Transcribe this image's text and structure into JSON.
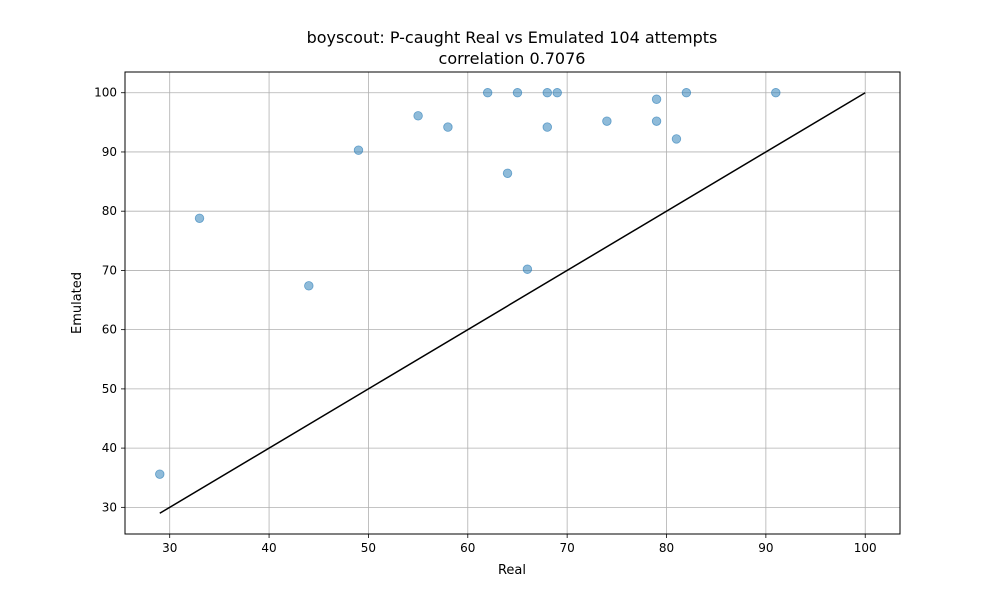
{
  "chart_data": {
    "type": "scatter",
    "title": "boyscout: P-caught Real vs Emulated 104 attempts",
    "subtitle": "correlation 0.7076",
    "xlabel": "Real",
    "ylabel": "Emulated",
    "xlim": [
      25.5,
      103.5
    ],
    "ylim": [
      25.5,
      103.5
    ],
    "xticks": [
      30,
      40,
      50,
      60,
      70,
      80,
      90,
      100
    ],
    "yticks": [
      30,
      40,
      50,
      60,
      70,
      80,
      90,
      100
    ],
    "grid": true,
    "colors": {
      "points": "#1f77b4",
      "reference_line": "#000000",
      "grid": "#b0b0b0"
    },
    "series": [
      {
        "values": [
          {
            "x": 29,
            "y": 35.6
          },
          {
            "x": 33,
            "y": 78.8
          },
          {
            "x": 44,
            "y": 67.4
          },
          {
            "x": 49,
            "y": 90.3
          },
          {
            "x": 55,
            "y": 96.1
          },
          {
            "x": 58,
            "y": 94.2
          },
          {
            "x": 62,
            "y": 100
          },
          {
            "x": 64,
            "y": 86.4
          },
          {
            "x": 65,
            "y": 100
          },
          {
            "x": 66,
            "y": 70.2
          },
          {
            "x": 68,
            "y": 100
          },
          {
            "x": 68,
            "y": 94.2
          },
          {
            "x": 69,
            "y": 100
          },
          {
            "x": 74,
            "y": 95.2
          },
          {
            "x": 79,
            "y": 98.9
          },
          {
            "x": 79,
            "y": 95.2
          },
          {
            "x": 81,
            "y": 92.2
          },
          {
            "x": 82,
            "y": 100
          },
          {
            "x": 91,
            "y": 100
          }
        ]
      }
    ],
    "reference_line": {
      "from": [
        29,
        29
      ],
      "to": [
        100,
        100
      ]
    }
  }
}
